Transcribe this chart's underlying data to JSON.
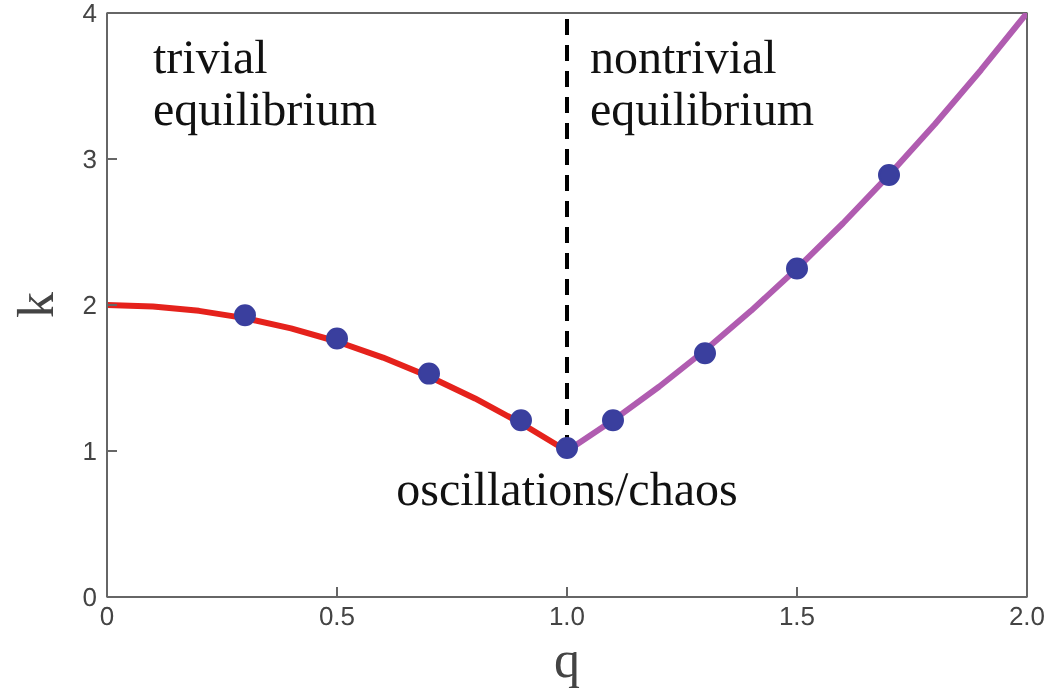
{
  "chart_data": {
    "type": "line",
    "xlabel": "q",
    "ylabel": "k",
    "xlim": [
      0,
      2.0
    ],
    "ylim": [
      0,
      4
    ],
    "xticks": [
      0,
      0.5,
      {
        "value": 1.0,
        "label": "1.0"
      },
      1.5,
      {
        "value": 2.0,
        "label": "2.0"
      }
    ],
    "yticks": [
      0,
      1,
      2,
      3,
      4
    ],
    "grid": false,
    "marker": "none",
    "line_style": "solid",
    "annotations": [
      "trivial\nequilibrium",
      "nontrivial\nequilibrium",
      "oscillations/chaos"
    ],
    "series": [
      {
        "color": "#e5221c",
        "x": [
          0,
          0.1,
          0.2,
          0.3,
          0.4,
          0.5,
          0.6,
          0.7,
          0.8,
          0.9,
          1.0
        ],
        "values": [
          2.0,
          1.99,
          1.96,
          1.91,
          1.84,
          1.75,
          1.64,
          1.51,
          1.36,
          1.19,
          1.0
        ]
      },
      {
        "color": "#b05cb0",
        "x": [
          1.0,
          1.1,
          1.2,
          1.3,
          1.4,
          1.5,
          1.6,
          1.7,
          1.8,
          1.9,
          2.0
        ],
        "values": [
          1.0,
          1.21,
          1.44,
          1.69,
          1.96,
          2.25,
          2.56,
          2.89,
          3.24,
          3.61,
          4.0
        ]
      },
      {
        "color": "#000000",
        "line_style": "dashed",
        "x": [
          1.0,
          1.0,
          1.0
        ],
        "values": [
          1.0,
          2.5,
          4.0
        ]
      },
      {
        "type": "scatter",
        "color": "#3a3f9e",
        "marker": "circle",
        "x": [
          0.3,
          0.5,
          0.7,
          0.9,
          1.0,
          1.1,
          1.3,
          1.5,
          1.7
        ],
        "values": [
          1.93,
          1.77,
          1.53,
          1.21,
          1.02,
          1.21,
          1.67,
          2.25,
          2.89
        ]
      }
    ]
  }
}
